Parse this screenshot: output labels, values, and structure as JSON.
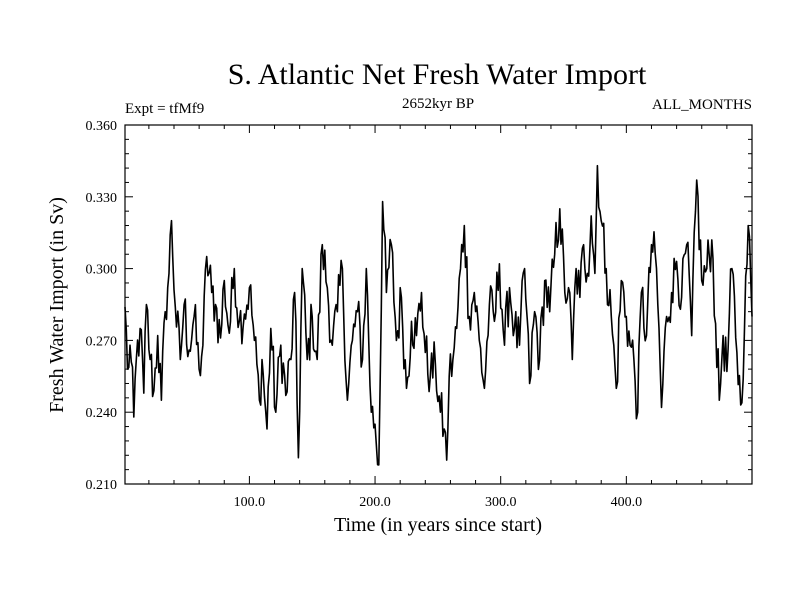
{
  "chart_data": {
    "type": "line",
    "title": "S. Atlantic Net Fresh Water Import",
    "experiment_label": "Expt = tfMf9",
    "period_label": "2652kyr BP",
    "months_label": "ALL_MONTHS",
    "xlabel": "Time (in years since start)",
    "ylabel": "Fresh Water Import (in Sv)",
    "xlim": [
      1,
      500
    ],
    "ylim": [
      0.21,
      0.36
    ],
    "x_ticks": [
      100,
      200,
      300,
      400
    ],
    "x_tick_labels": [
      "100.0",
      "200.0",
      "300.0",
      "400.0"
    ],
    "y_ticks": [
      0.21,
      0.24,
      0.27,
      0.3,
      0.33,
      0.36
    ],
    "y_tick_labels": [
      "0.210",
      "0.240",
      "0.270",
      "0.300",
      "0.330",
      "0.360"
    ],
    "grid": false,
    "series": [
      {
        "name": "Net fresh water import",
        "color": "#000000",
        "anchors": [
          [
            1,
            0.284
          ],
          [
            3,
            0.258
          ],
          [
            5,
            0.268
          ],
          [
            8,
            0.238
          ],
          [
            10,
            0.262
          ],
          [
            13,
            0.275
          ],
          [
            16,
            0.248
          ],
          [
            18,
            0.285
          ],
          [
            21,
            0.262
          ],
          [
            24,
            0.249
          ],
          [
            27,
            0.272
          ],
          [
            30,
            0.245
          ],
          [
            33,
            0.282
          ],
          [
            36,
            0.298
          ],
          [
            38,
            0.32
          ],
          [
            41,
            0.284
          ],
          [
            45,
            0.262
          ],
          [
            48,
            0.285
          ],
          [
            52,
            0.266
          ],
          [
            56,
            0.28
          ],
          [
            60,
            0.258
          ],
          [
            63,
            0.268
          ],
          [
            66,
            0.305
          ],
          [
            70,
            0.29
          ],
          [
            73,
            0.285
          ],
          [
            77,
            0.271
          ],
          [
            80,
            0.295
          ],
          [
            84,
            0.273
          ],
          [
            88,
            0.3
          ],
          [
            92,
            0.278
          ],
          [
            96,
            0.281
          ],
          [
            100,
            0.292
          ],
          [
            104,
            0.27
          ],
          [
            108,
            0.245
          ],
          [
            110,
            0.262
          ],
          [
            114,
            0.233
          ],
          [
            117,
            0.275
          ],
          [
            121,
            0.24
          ],
          [
            125,
            0.268
          ],
          [
            129,
            0.247
          ],
          [
            133,
            0.262
          ],
          [
            136,
            0.29
          ],
          [
            139,
            0.221
          ],
          [
            142,
            0.3
          ],
          [
            146,
            0.262
          ],
          [
            150,
            0.28
          ],
          [
            154,
            0.262
          ],
          [
            158,
            0.31
          ],
          [
            162,
            0.292
          ],
          [
            166,
            0.268
          ],
          [
            170,
            0.282
          ],
          [
            174,
            0.3
          ],
          [
            178,
            0.245
          ],
          [
            182,
            0.27
          ],
          [
            186,
            0.282
          ],
          [
            190,
            0.262
          ],
          [
            193,
            0.3
          ],
          [
            197,
            0.24
          ],
          [
            200,
            0.235
          ],
          [
            203,
            0.218
          ],
          [
            206,
            0.328
          ],
          [
            209,
            0.29
          ],
          [
            213,
            0.31
          ],
          [
            217,
            0.27
          ],
          [
            221,
            0.288
          ],
          [
            225,
            0.25
          ],
          [
            229,
            0.278
          ],
          [
            233,
            0.272
          ],
          [
            237,
            0.29
          ],
          [
            240,
            0.265
          ],
          [
            244,
            0.255
          ],
          [
            248,
            0.26
          ],
          [
            252,
            0.24
          ],
          [
            255,
            0.233
          ],
          [
            257,
            0.22
          ],
          [
            259,
            0.255
          ],
          [
            262,
            0.262
          ],
          [
            265,
            0.275
          ],
          [
            268,
            0.3
          ],
          [
            271,
            0.318
          ],
          [
            275,
            0.28
          ],
          [
            279,
            0.29
          ],
          [
            283,
            0.27
          ],
          [
            287,
            0.25
          ],
          [
            291,
            0.285
          ],
          [
            295,
            0.278
          ],
          [
            299,
            0.302
          ],
          [
            303,
            0.268
          ],
          [
            307,
            0.292
          ],
          [
            311,
            0.275
          ],
          [
            315,
            0.268
          ],
          [
            319,
            0.3
          ],
          [
            323,
            0.252
          ],
          [
            327,
            0.282
          ],
          [
            331,
            0.262
          ],
          [
            335,
            0.295
          ],
          [
            339,
            0.282
          ],
          [
            343,
            0.306
          ],
          [
            347,
            0.325
          ],
          [
            351,
            0.29
          ],
          [
            354,
            0.292
          ],
          [
            357,
            0.262
          ],
          [
            360,
            0.3
          ],
          [
            363,
            0.288
          ],
          [
            366,
            0.31
          ],
          [
            369,
            0.298
          ],
          [
            372,
            0.322
          ],
          [
            375,
            0.298
          ],
          [
            377,
            0.343
          ],
          [
            380,
            0.32
          ],
          [
            384,
            0.3
          ],
          [
            388,
            0.28
          ],
          [
            392,
            0.25
          ],
          [
            396,
            0.295
          ],
          [
            400,
            0.28
          ],
          [
            403,
            0.268
          ],
          [
            406,
            0.262
          ],
          [
            409,
            0.24
          ],
          [
            412,
            0.29
          ],
          [
            416,
            0.272
          ],
          [
            420,
            0.31
          ],
          [
            424,
            0.3
          ],
          [
            428,
            0.242
          ],
          [
            432,
            0.28
          ],
          [
            436,
            0.29
          ],
          [
            440,
            0.303
          ],
          [
            444,
            0.288
          ],
          [
            448,
            0.31
          ],
          [
            452,
            0.272
          ],
          [
            456,
            0.337
          ],
          [
            460,
            0.295
          ],
          [
            464,
            0.3
          ],
          [
            468,
            0.312
          ],
          [
            471,
            0.277
          ],
          [
            474,
            0.245
          ],
          [
            477,
            0.272
          ],
          [
            480,
            0.257
          ],
          [
            484,
            0.3
          ],
          [
            488,
            0.265
          ],
          [
            491,
            0.243
          ],
          [
            494,
            0.275
          ],
          [
            497,
            0.318
          ],
          [
            500,
            0.28
          ]
        ]
      }
    ]
  }
}
